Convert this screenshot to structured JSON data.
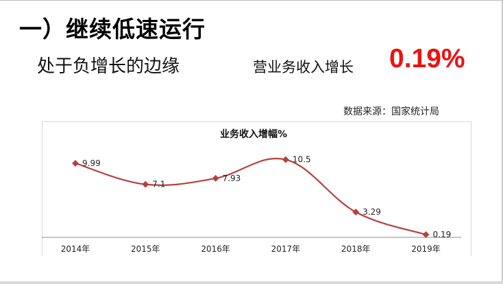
{
  "slide": {
    "title": "一）继续低速运行",
    "subtitle": "处于负增长的边缘",
    "metric_label": "营业务收入增长",
    "metric_value": "0.19%",
    "source": "数据来源：国家统计局"
  },
  "colors": {
    "accent_red": "#ee1111",
    "series_line": "#b5403d"
  },
  "chart_data": {
    "type": "line",
    "title": "业务收入增幅%",
    "categories": [
      "2014年",
      "2015年",
      "2016年",
      "2017年",
      "2018年",
      "2019年"
    ],
    "values": [
      9.99,
      7.1,
      7.93,
      10.5,
      3.29,
      0.19
    ],
    "labels": [
      "9.99",
      "7.1",
      "7.93",
      "10.5",
      "3.29",
      "0.19"
    ],
    "ylim": [
      0,
      12
    ],
    "grid": false,
    "legend": "none"
  }
}
